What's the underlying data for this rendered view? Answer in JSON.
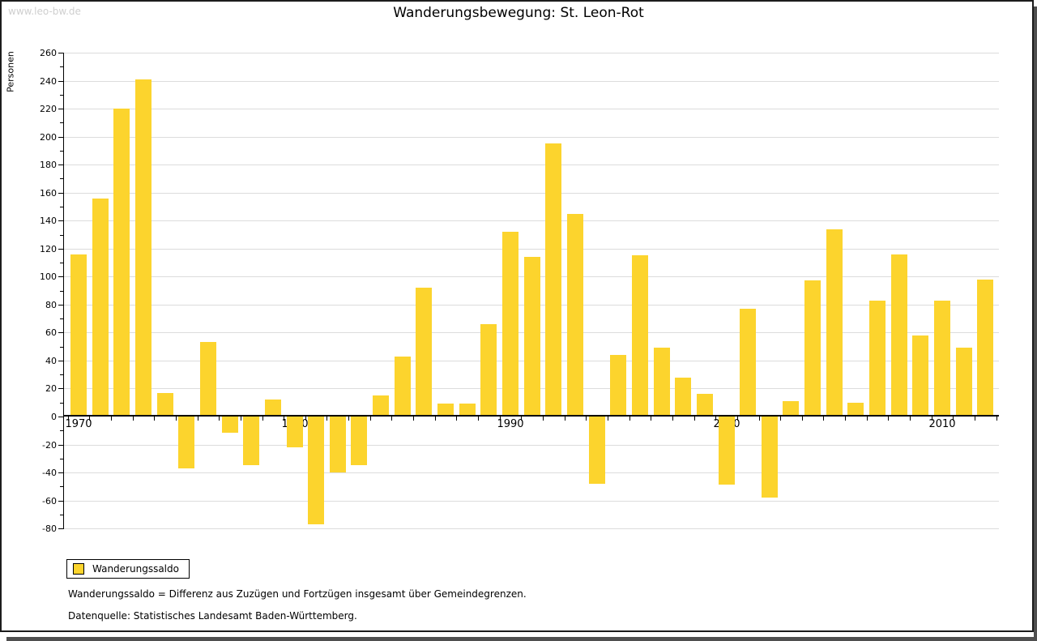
{
  "watermark": "www.leo-bw.de",
  "footnotes": {
    "line1": "Wanderungssaldo = Differenz aus Zuzügen und Fortzügen insgesamt über Gemeindegrenzen.",
    "line2": "Datenquelle: Statistisches Landesamt Baden-Württemberg."
  },
  "chart_data": {
    "type": "bar",
    "title": "Wanderungsbewegung: St. Leon-Rot",
    "ylabel": "Personen",
    "xlabel": "",
    "bar_color": "#fcd42d",
    "grid": true,
    "legend_position": "bottom-left",
    "legend": [
      {
        "label": "Wanderungssaldo",
        "color": "#fcd42d"
      }
    ],
    "ylim": [
      -80,
      260
    ],
    "ytick_step": 20,
    "ytick_minor_step": 10,
    "xtick_labels": [
      1970,
      1980,
      1990,
      2000,
      2010
    ],
    "x": [
      1970,
      1971,
      1972,
      1973,
      1974,
      1975,
      1976,
      1977,
      1978,
      1979,
      1980,
      1981,
      1982,
      1983,
      1984,
      1985,
      1986,
      1987,
      1988,
      1989,
      1990,
      1991,
      1992,
      1993,
      1994,
      1995,
      1996,
      1997,
      1998,
      1999,
      2000,
      2001,
      2002,
      2003,
      2004,
      2005,
      2006,
      2007,
      2008,
      2009,
      2010,
      2011,
      2012
    ],
    "series": [
      {
        "name": "Wanderungssaldo",
        "values": [
          116,
          156,
          220,
          241,
          17,
          -38,
          53,
          -13,
          -36,
          12,
          -23,
          -78,
          -41,
          -36,
          15,
          43,
          92,
          9,
          9,
          66,
          132,
          114,
          195,
          145,
          -49,
          44,
          115,
          49,
          28,
          16,
          -50,
          77,
          -59,
          11,
          97,
          134,
          10,
          83,
          116,
          58,
          83,
          49,
          98
        ]
      }
    ]
  }
}
